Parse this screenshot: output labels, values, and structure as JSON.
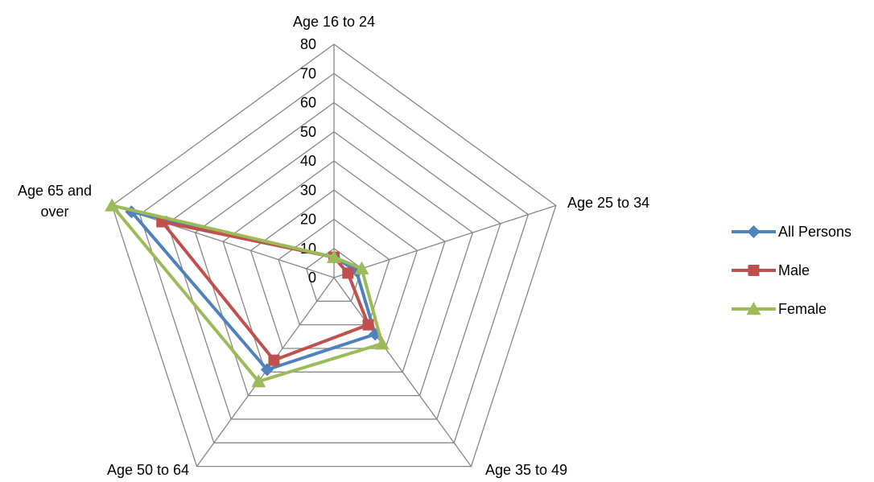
{
  "chart_data": {
    "type": "radar",
    "categories": [
      "Age 16 to 24",
      "Age 25 to 34",
      "Age 35 to 49",
      "Age 50 to 64",
      "Age 65 and over"
    ],
    "category_label_lines": [
      [
        "Age 16 to 24"
      ],
      [
        "Age 25 to 34"
      ],
      [
        "Age 35 to 49"
      ],
      [
        "Age 50 to 64"
      ],
      [
        "Age 65 and",
        "over"
      ]
    ],
    "series": [
      {
        "name": "All Persons",
        "color": "#4F81BD",
        "marker": "diamond",
        "values": [
          7,
          8,
          24,
          39,
          73
        ]
      },
      {
        "name": "Male",
        "color": "#C0504D",
        "marker": "square",
        "values": [
          7,
          5,
          20,
          35,
          62
        ]
      },
      {
        "name": "Female",
        "color": "#9BBB59",
        "marker": "triangle",
        "values": [
          7,
          10,
          28,
          44,
          80
        ]
      }
    ],
    "rlim": [
      0,
      80
    ],
    "ticks": [
      0,
      10,
      20,
      30,
      40,
      50,
      60,
      70,
      80
    ],
    "grid": true,
    "grid_color": "#868686",
    "legend_position": "right"
  }
}
